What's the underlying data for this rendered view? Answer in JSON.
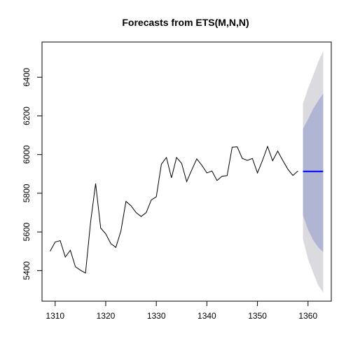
{
  "chart_data": {
    "type": "line",
    "title": "Forecasts from ETS(M,N,N)",
    "xlabel": "",
    "ylabel": "",
    "xlim": [
      1307.4,
      1364.6
    ],
    "ylim": [
      5242,
      6582
    ],
    "x_ticks": [
      1310,
      1320,
      1330,
      1340,
      1350,
      1360
    ],
    "y_ticks": [
      5400,
      5600,
      5800,
      6000,
      6200,
      6400
    ],
    "grid": false,
    "legend": "none",
    "history": {
      "x": [
        1309,
        1310,
        1311,
        1312,
        1313,
        1314,
        1315,
        1316,
        1317,
        1318,
        1319,
        1320,
        1321,
        1322,
        1323,
        1324,
        1325,
        1326,
        1327,
        1328,
        1329,
        1330,
        1331,
        1332,
        1333,
        1334,
        1335,
        1336,
        1337,
        1338,
        1339,
        1340,
        1341,
        1342,
        1343,
        1344,
        1345,
        1346,
        1347,
        1348,
        1349,
        1350,
        1351,
        1352,
        1353,
        1354,
        1355,
        1356,
        1357,
        1358
      ],
      "y": [
        5500,
        5548,
        5555,
        5470,
        5505,
        5420,
        5402,
        5387,
        5650,
        5850,
        5620,
        5590,
        5540,
        5520,
        5605,
        5758,
        5735,
        5700,
        5680,
        5700,
        5765,
        5782,
        5950,
        5985,
        5880,
        5985,
        5955,
        5860,
        5920,
        5978,
        5945,
        5905,
        5915,
        5866,
        5888,
        5891,
        6038,
        6040,
        5980,
        5970,
        5980,
        5905,
        5970,
        6042,
        5968,
        6018,
        5970,
        5925,
        5892,
        5915
      ]
    },
    "forecast": {
      "x": [
        1359,
        1360,
        1361,
        1362,
        1363
      ],
      "mean": [
        5913,
        5913,
        5913,
        5913,
        5913
      ],
      "lo80": [
        5687,
        5612,
        5558,
        5521,
        5496
      ],
      "hi80": [
        6134,
        6183,
        6236,
        6278,
        6315
      ],
      "lo95": [
        5562,
        5460,
        5390,
        5325,
        5287
      ],
      "hi95": [
        6262,
        6342,
        6408,
        6478,
        6535
      ]
    },
    "colors": {
      "history": "#000000",
      "forecast_mean": "#0000ff",
      "band80": "#b0b5d3",
      "band95": "#dbdbdf",
      "axis": "#000000"
    }
  }
}
